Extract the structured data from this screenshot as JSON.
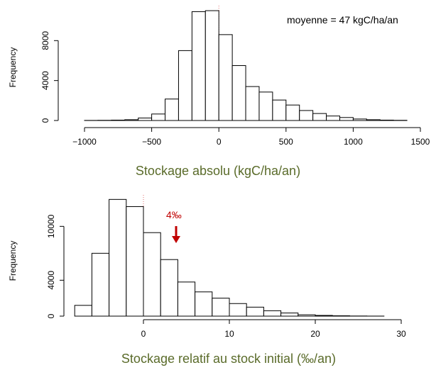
{
  "colors": {
    "xlabel": "#5a6b2a",
    "annotation_red": "#c00000",
    "zero_line": "#e07070"
  },
  "chart_data": [
    {
      "type": "bar",
      "subtype": "histogram",
      "title": "",
      "annotation": "moyenne = 47 kgC/ha/an",
      "xlabel": "Stockage absolu (kgC/ha/an)",
      "ylabel": "Frequency",
      "xlim": [
        -1100,
        1500
      ],
      "ylim": [
        0,
        11500
      ],
      "xticks": [
        -1000,
        -500,
        0,
        500,
        1000,
        1500
      ],
      "xtick_labels": [
        "−1000",
        "−500",
        "0",
        "500",
        "1000",
        "1500"
      ],
      "yticks": [
        0,
        4000,
        8000
      ],
      "ytick_labels": [
        "0",
        "4000",
        "8000"
      ],
      "reference_line_x": 0,
      "bin_edges": [
        -1000,
        -900,
        -800,
        -700,
        -600,
        -500,
        -400,
        -300,
        -200,
        -100,
        0,
        100,
        200,
        300,
        400,
        500,
        600,
        700,
        800,
        900,
        1000,
        1100,
        1200,
        1300,
        1400
      ],
      "counts": [
        10,
        20,
        40,
        80,
        250,
        650,
        2150,
        7000,
        10900,
        11000,
        8600,
        5500,
        3400,
        2850,
        2050,
        1550,
        1000,
        700,
        450,
        300,
        150,
        80,
        40,
        20
      ]
    },
    {
      "type": "bar",
      "subtype": "histogram",
      "title": "",
      "annotation": "4‰",
      "annotation_x": 4,
      "xlabel": "Stockage relatif au stock initial (‰/an)",
      "ylabel": "Frequency",
      "xlim": [
        -8,
        34
      ],
      "ylim": [
        0,
        13500
      ],
      "xticks": [
        0,
        10,
        20,
        30
      ],
      "xtick_labels": [
        "0",
        "10",
        "20",
        "30"
      ],
      "yticks": [
        0,
        4000,
        10000
      ],
      "ytick_labels": [
        "0",
        "4000",
        "10000"
      ],
      "reference_line_x": 0,
      "bin_edges": [
        -8,
        -6,
        -4,
        -2,
        0,
        2,
        4,
        6,
        8,
        10,
        12,
        14,
        16,
        18,
        20,
        22,
        24,
        26,
        28
      ],
      "counts": [
        1200,
        7000,
        13000,
        12200,
        9300,
        6300,
        3800,
        2700,
        2000,
        1400,
        1000,
        600,
        350,
        150,
        80,
        40,
        15,
        5
      ]
    }
  ]
}
